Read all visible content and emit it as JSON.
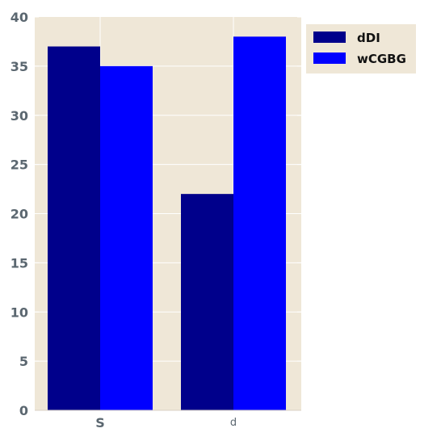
{
  "chart_data": {
    "type": "bar",
    "categories": [
      "S",
      "d"
    ],
    "series": [
      {
        "name": "dDI",
        "values": [
          37,
          22
        ],
        "color": "#00008b"
      },
      {
        "name": "wCGBG",
        "values": [
          35,
          38
        ],
        "color": "#0000ff"
      }
    ],
    "title": "",
    "xlabel": "",
    "ylabel": "",
    "ylim": [
      0,
      40
    ],
    "yticks": [
      0,
      5,
      10,
      15,
      20,
      25,
      30,
      35,
      40
    ],
    "grid": true,
    "legend_position": "outside-top-right",
    "background_color": "#efe7d7",
    "gridline_color": "#ffffff",
    "tick_label_color": "#5b6770"
  }
}
